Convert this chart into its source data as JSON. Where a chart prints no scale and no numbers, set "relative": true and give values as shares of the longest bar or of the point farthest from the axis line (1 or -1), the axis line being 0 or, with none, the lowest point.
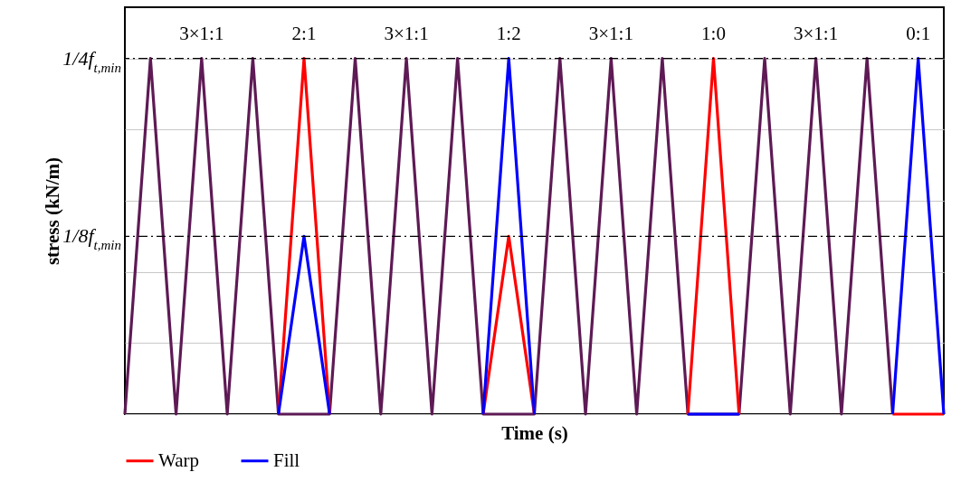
{
  "chart_data": {
    "type": "line",
    "xlabel": "Time (s)",
    "ylabel": "stress (kN/m)",
    "relative": true,
    "categories": [
      null,
      null,
      null,
      null,
      null,
      null,
      null,
      null,
      null,
      null,
      null,
      null,
      null,
      null,
      null,
      null,
      null,
      null,
      null,
      null,
      null,
      null,
      null,
      null,
      null,
      null,
      null,
      null,
      null,
      null,
      null,
      null,
      null
    ],
    "series": [
      {
        "color": "#5e1a55",
        "values": [
          0,
          1,
          0,
          1,
          0,
          1,
          0,
          0,
          0,
          1,
          0,
          1,
          0,
          1,
          0,
          0,
          0,
          1,
          0,
          1,
          0,
          1,
          0,
          0,
          0,
          1,
          0,
          1,
          0,
          1,
          0,
          null,
          null
        ]
      },
      {
        "name": "Warp",
        "color": "#ff0000",
        "values": [
          null,
          null,
          null,
          null,
          null,
          null,
          0,
          1,
          0,
          null,
          null,
          null,
          null,
          null,
          0,
          0.5,
          0,
          null,
          null,
          null,
          null,
          null,
          0,
          1,
          0,
          null,
          null,
          null,
          null,
          null,
          0,
          0,
          0
        ]
      },
      {
        "name": "Fill",
        "color": "#0000ff",
        "values": [
          null,
          null,
          null,
          null,
          null,
          null,
          0,
          0.5,
          0,
          null,
          null,
          null,
          null,
          null,
          0,
          1,
          0,
          null,
          null,
          null,
          null,
          null,
          0,
          0,
          0,
          null,
          null,
          null,
          null,
          null,
          0,
          1,
          0
        ]
      }
    ],
    "grid": "y",
    "legend": "bottom",
    "line_style": "solid",
    "ref_lines": [
      {
        "axis": "y",
        "value": 1,
        "label": "1/4f$_{t,min}$",
        "color": "#000000",
        "line_style": "dashed"
      },
      {
        "axis": "y",
        "value": 0.5,
        "label": "1/8f$_{t,min}$",
        "color": "#000000",
        "line_style": "dashed"
      }
    ],
    "annotations": [
      "3×1:1",
      "2:1",
      "3×1:1",
      "1:2",
      "3×1:1",
      "1:0",
      "3×1:1",
      "0:1"
    ]
  }
}
